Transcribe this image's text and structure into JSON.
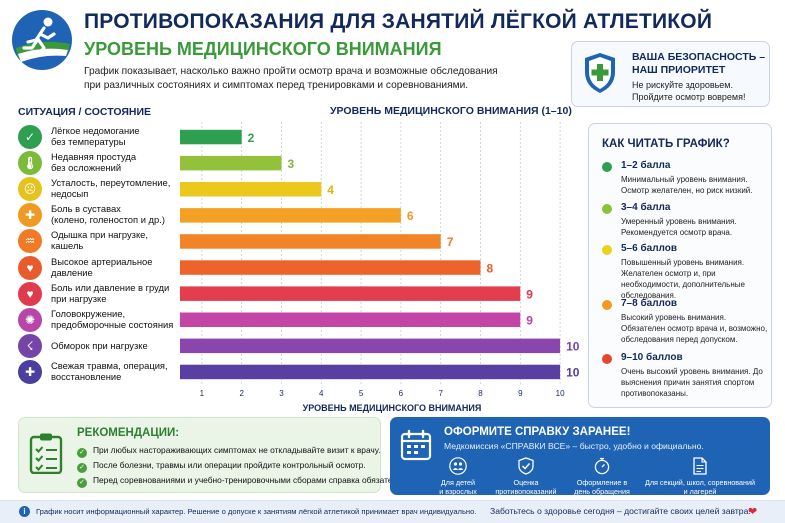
{
  "header": {
    "title": "ПРОТИВОПОКАЗАНИЯ ДЛЯ ЗАНЯТИЙ ЛЁГКОЙ АТЛЕТИКОЙ",
    "subtitle": "УРОВЕНЬ МЕДИЦИНСКОГО ВНИМАНИЯ",
    "intro": "График показывает, насколько важно пройти осмотр врача и возможные обследования при различных состояниях и симптомах перед тренировками и соревнованиями."
  },
  "safety": {
    "title_line1": "ВАША БЕЗОПАСНОСТЬ –",
    "title_line2": "НАШ ПРИОРИТЕТ",
    "text_line1": "Не рискуйте здоровьем.",
    "text_line2": "Пройдите осмотр вовремя!"
  },
  "situation_header": "СИТУАЦИЯ / СОСТОЯНИЕ",
  "situations": [
    {
      "line1": "Лёгкое недомогание",
      "line2": "без температуры",
      "icon": "check-icon",
      "color": "#2e9e4f"
    },
    {
      "line1": "Недавняя простуда",
      "line2": "без осложнений",
      "icon": "thermometer-icon",
      "color": "#7cba3a"
    },
    {
      "line1": "Усталость, переутомление,",
      "line2": "недосып",
      "icon": "tired-face-icon",
      "color": "#e6c21d"
    },
    {
      "line1": "Боль в суставах",
      "line2": "(колено, голеностоп и др.)",
      "icon": "joint-icon",
      "color": "#ef9a23"
    },
    {
      "line1": "Одышка при нагрузке,",
      "line2": "кашель",
      "icon": "lungs-icon",
      "color": "#f07a26"
    },
    {
      "line1": "Высокое артериальное",
      "line2": "давление",
      "icon": "heart-pulse-icon",
      "color": "#ea5b2c"
    },
    {
      "line1": "Боль или давление в груди",
      "line2": "при нагрузке",
      "icon": "chest-pain-icon",
      "color": "#e03a4e"
    },
    {
      "line1": "Головокружение,",
      "line2": "предобморочные состояния",
      "icon": "dizzy-icon",
      "color": "#b846a7"
    },
    {
      "line1": "Обморок при нагрузке",
      "line2": "",
      "icon": "fainting-icon",
      "color": "#7444a8"
    },
    {
      "line1": "Свежая травма, операция,",
      "line2": "восстановление",
      "icon": "bandage-icon",
      "color": "#4a3e9e"
    }
  ],
  "chart_data": {
    "type": "bar",
    "orientation": "horizontal",
    "title": "УРОВЕНЬ МЕДИЦИНСКОГО ВНИМАНИЯ (1–10)",
    "xlabel": "УРОВЕНЬ МЕДИЦИНСКОГО ВНИМАНИЯ",
    "ylabel": "СИТУАЦИЯ / СОСТОЯНИЕ",
    "categories": [
      "Лёгкое недомогание без температуры",
      "Недавняя простуда без осложнений",
      "Усталость, переутомление, недосып",
      "Боль в суставах (колено, голеностоп и др.)",
      "Одышка при нагрузке, кашель",
      "Высокое артериальное давление",
      "Боль или давление в груди при нагрузке",
      "Головокружение, предобморочные состояния",
      "Обморок при нагрузке",
      "Свежая травма, операция, восстановление"
    ],
    "values": [
      2,
      3,
      4,
      6,
      7,
      8,
      9,
      9,
      10,
      10
    ],
    "bar_colors": [
      "#2e9e4f",
      "#93c23a",
      "#ecc71c",
      "#f3a124",
      "#f28326",
      "#ec642a",
      "#e23e4e",
      "#c346a6",
      "#8a46ad",
      "#5a3fa3"
    ],
    "label_colors": [
      "#2e9e4f",
      "#7cba3a",
      "#d9b800",
      "#ef9a23",
      "#f07a26",
      "#ea5b2c",
      "#e03a4e",
      "#b846a7",
      "#7444a8",
      "#4a3e9e"
    ],
    "xticks": [
      1,
      2,
      3,
      4,
      5,
      6,
      7,
      8,
      9,
      10
    ],
    "xlim": [
      0.4,
      10.5
    ],
    "grid": true,
    "legend_position": "right"
  },
  "legend": {
    "title": "КАК ЧИТАТЬ ГРАФИК?",
    "items": [
      {
        "title": "1–2 балла",
        "desc": "Минимальный уровень внимания. Осмотр желателен, но риск низкий.",
        "color": "#2e9e4f"
      },
      {
        "title": "3–4 балла",
        "desc": "Умеренный уровень внимания. Рекомендуется осмотр врача.",
        "color": "#8cc13a"
      },
      {
        "title": "5–6 баллов",
        "desc": "Повышенный уровень внимания. Желателен осмотр и, при необходимости, дополнительные обследования.",
        "color": "#ecd21c"
      },
      {
        "title": "7–8 баллов",
        "desc": "Высокий уровень внимания. Обязателен осмотр врача и, возможно, обследования перед допуском.",
        "color": "#f39a24"
      },
      {
        "title": "9–10 баллов",
        "desc": "Очень высокий уровень внимания. До выяснения причин занятия спортом противопоказаны.",
        "color": "#e4462e"
      }
    ]
  },
  "recommendations": {
    "title": "РЕКОМЕНДАЦИИ:",
    "items": [
      "При любых настораживающих симптомах не откладывайте визит к врачу.",
      "После болезни, травмы или операции пройдите контрольный осмотр.",
      "Перед соревнованиями и учебно-тренировочными сборами справка обязательна!"
    ]
  },
  "order": {
    "title": "ОФОРМИТЕ СПРАВКУ ЗАРАНЕЕ!",
    "text": "Медкомиссия «СПРАВКИ ВСЕ» – быстро, удобно и официально.",
    "features": [
      {
        "line1": "Для детей",
        "line2": "и взрослых",
        "icon": "people-icon"
      },
      {
        "line1": "Оценка",
        "line2": "противопоказаний",
        "icon": "shield-check-icon"
      },
      {
        "line1": "Оформление в",
        "line2": "день обращения",
        "icon": "stopwatch-icon"
      },
      {
        "line1": "Для секций, школ, соревнований",
        "line2": "и лагерей",
        "icon": "document-icon"
      }
    ]
  },
  "footer": {
    "disclaimer": "График носит информационный характер. Решение о допуске к занятиям лёгкой атлетикой принимает врач индивидуально.",
    "slogan": "Заботьтесь о здоровье сегодня – достигайте своих целей завтра!"
  }
}
